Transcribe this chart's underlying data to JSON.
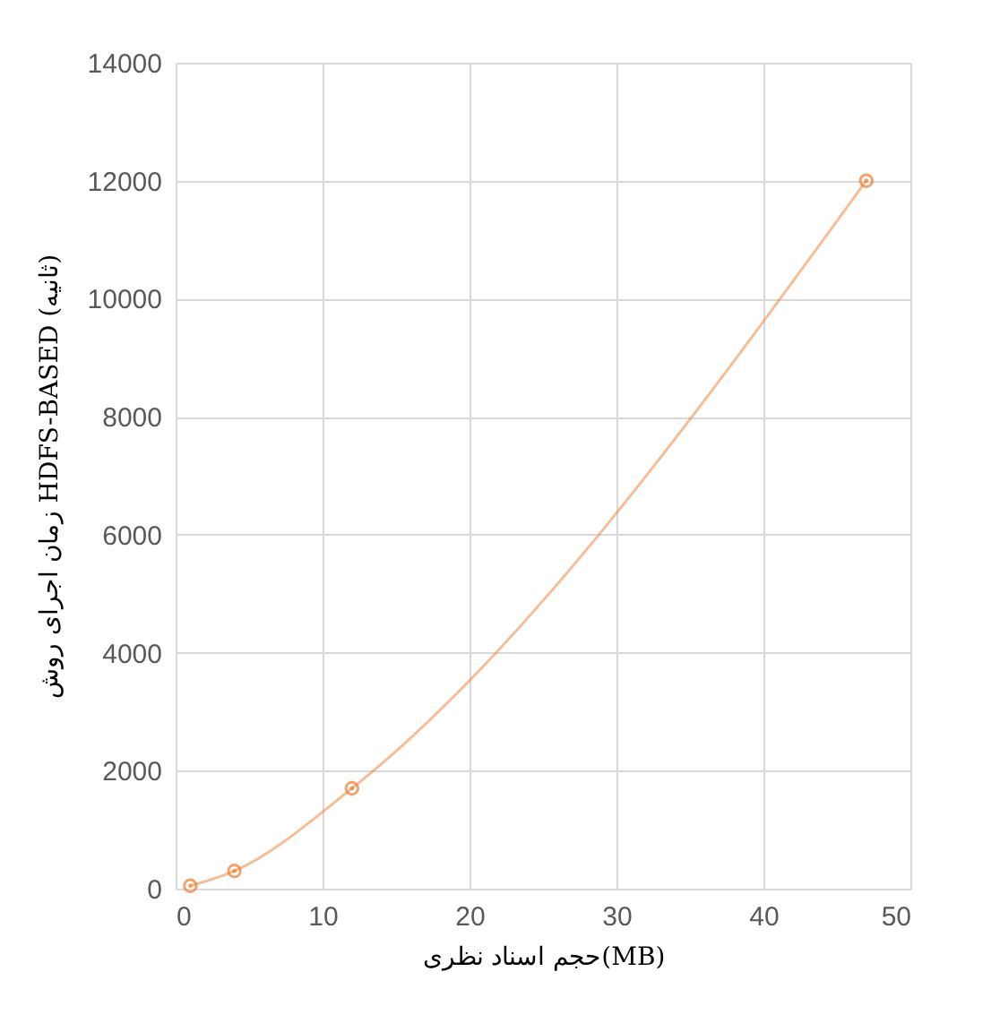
{
  "chart_data": {
    "type": "line",
    "xlabel": "حجم اسناد نظری(MB)",
    "ylabel": "زمان اجرای روش HDFS-BASED (ثانیه)",
    "x": [
      1,
      4,
      12,
      47
    ],
    "series": [
      {
        "color": "#ed7d31",
        "values": [
          50,
          300,
          1700,
          12000
        ]
      }
    ],
    "xlim": [
      0,
      50
    ],
    "xticks": [
      0,
      10,
      20,
      30,
      40,
      50
    ],
    "ylim": [
      0,
      14000
    ],
    "yticks": [
      0,
      2000,
      4000,
      6000,
      8000,
      10000,
      12000,
      14000
    ],
    "grid": true,
    "marker": "circle",
    "line_style": "solid"
  }
}
